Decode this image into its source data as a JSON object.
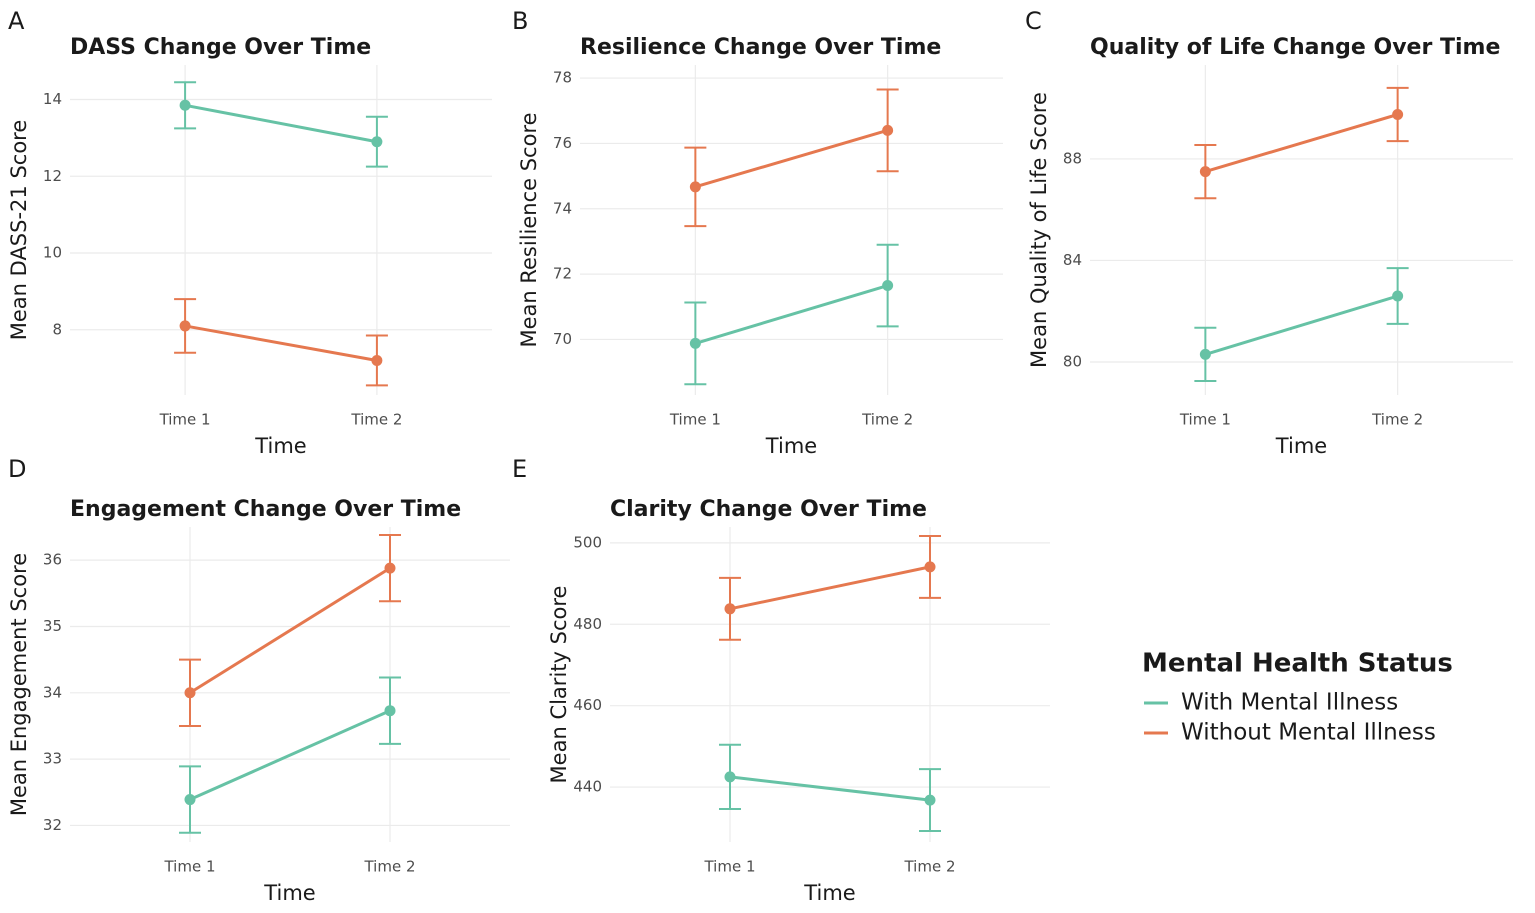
{
  "chart_data": [
    {
      "type": "line",
      "label": "A",
      "title": "DASS Change Over Time",
      "x_label": "Time",
      "y_label": "Mean DASS-21 Score",
      "categories": [
        "Time 1",
        "Time 2"
      ],
      "series": [
        {
          "color": "#66c2a5",
          "values": [
            13.85,
            12.9
          ],
          "errors": [
            0.6,
            0.65
          ]
        },
        {
          "color": "#e5784f",
          "values": [
            8.1,
            7.2
          ],
          "errors": [
            0.7,
            0.65
          ]
        }
      ],
      "ylim": [
        6.3,
        14.9
      ],
      "yticks": [
        8,
        10,
        12,
        14
      ],
      "grid": true
    },
    {
      "type": "line",
      "label": "B",
      "title": "Resilience Change Over Time",
      "x_label": "Time",
      "y_label": "Mean Resilience Score",
      "categories": [
        "Time 1",
        "Time 2"
      ],
      "series": [
        {
          "color": "#66c2a5",
          "values": [
            69.88,
            71.65
          ],
          "errors": [
            1.25,
            1.25
          ]
        },
        {
          "color": "#e5784f",
          "values": [
            74.67,
            76.4
          ],
          "errors": [
            1.2,
            1.25
          ]
        }
      ],
      "ylim": [
        68.3,
        78.4
      ],
      "yticks": [
        70,
        72,
        74,
        76,
        78
      ],
      "grid": true
    },
    {
      "type": "line",
      "label": "C",
      "title": "Quality of Life Change Over Time",
      "x_label": "Time",
      "y_label": "Mean Quality of Life Score",
      "categories": [
        "Time 1",
        "Time 2"
      ],
      "series": [
        {
          "color": "#66c2a5",
          "values": [
            80.3,
            82.6
          ],
          "errors": [
            1.05,
            1.1
          ]
        },
        {
          "color": "#e5784f",
          "values": [
            87.5,
            89.75
          ],
          "errors": [
            1.05,
            1.05
          ]
        }
      ],
      "ylim": [
        78.7,
        91.7
      ],
      "yticks": [
        80,
        84,
        88
      ],
      "grid": true
    },
    {
      "type": "line",
      "label": "D",
      "title": "Engagement Change Over Time",
      "x_label": "Time",
      "y_label": "Mean Engagement Score",
      "categories": [
        "Time 1",
        "Time 2"
      ],
      "series": [
        {
          "color": "#66c2a5",
          "values": [
            32.39,
            33.73
          ],
          "errors": [
            0.5,
            0.5
          ]
        },
        {
          "color": "#e5784f",
          "values": [
            34.0,
            35.88
          ],
          "errors": [
            0.5,
            0.5
          ]
        }
      ],
      "ylim": [
        31.75,
        36.5
      ],
      "yticks": [
        32,
        33,
        34,
        35,
        36
      ],
      "grid": true
    },
    {
      "type": "line",
      "label": "E",
      "title": "Clarity Change Over Time",
      "x_label": "Time",
      "y_label": "Mean Clarity Score",
      "categories": [
        "Time 1",
        "Time 2"
      ],
      "series": [
        {
          "color": "#66c2a5",
          "values": [
            442.5,
            436.8
          ],
          "errors": [
            7.9,
            7.6
          ]
        },
        {
          "color": "#e5784f",
          "values": [
            483.8,
            494.1
          ],
          "errors": [
            7.6,
            7.6
          ]
        }
      ],
      "ylim": [
        426.5,
        503.9
      ],
      "yticks": [
        440,
        460,
        480,
        500
      ],
      "grid": true
    }
  ],
  "legend": {
    "title": "Mental Health Status",
    "items": [
      {
        "name": "With Mental Illness",
        "color": "#66c2a5"
      },
      {
        "name": "Without Mental Illness",
        "color": "#e5784f"
      }
    ]
  }
}
